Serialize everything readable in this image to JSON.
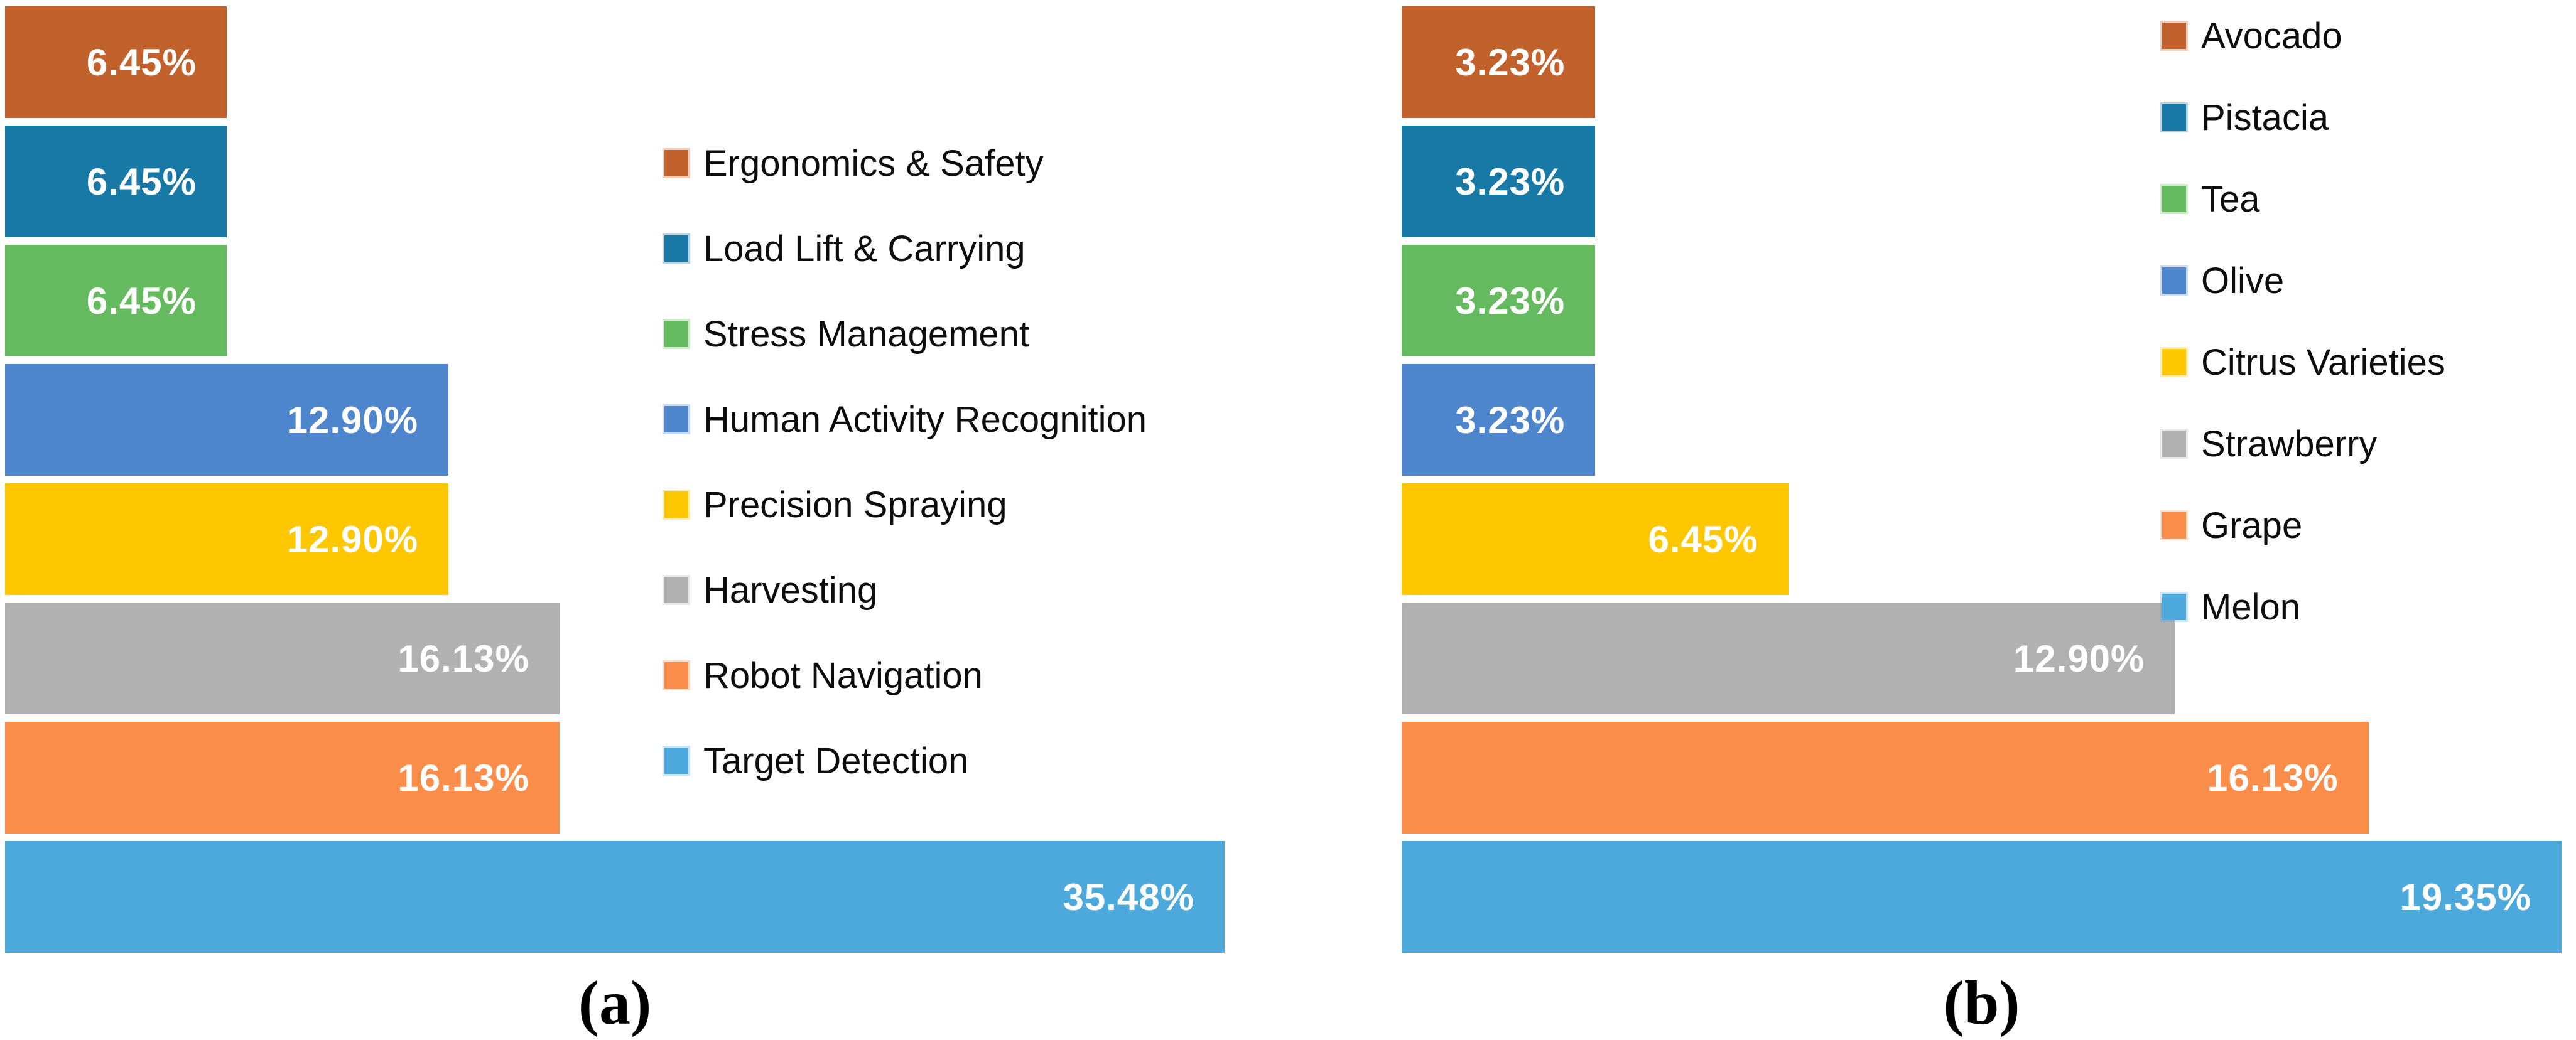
{
  "background_color": "#FFFFFF",
  "chart_data": [
    {
      "id": "a",
      "type": "bar",
      "orientation": "horizontal",
      "caption": "(a)",
      "title": "",
      "xlabel": "",
      "ylabel": "",
      "xlim": [
        0,
        35.48
      ],
      "grid": false,
      "legend_position": "right-overlay",
      "categories": [
        "Ergonomics & Safety",
        "Load Lift & Carrying",
        "Stress Management",
        "Human Activity Recognition",
        "Precision Spraying",
        "Harvesting",
        "Robot Navigation",
        "Target Detection"
      ],
      "values": [
        6.45,
        6.45,
        6.45,
        12.9,
        12.9,
        16.13,
        16.13,
        35.48
      ],
      "labels": [
        "6.45%",
        "6.45%",
        "6.45%",
        "12.90%",
        "12.90%",
        "16.13%",
        "16.13%",
        "35.48%"
      ],
      "colors": [
        "#C1612B",
        "#1878A6",
        "#65B95E",
        "#4E86CE",
        "#FFC702",
        "#B1B1B1",
        "#FB8D4B",
        "#4DA9DC"
      ],
      "value_label_color": "#FFFFFF",
      "legend_text_color": "#0D0D0D"
    },
    {
      "id": "b",
      "type": "bar",
      "orientation": "horizontal",
      "caption": "(b)",
      "title": "",
      "xlabel": "",
      "ylabel": "",
      "xlim": [
        0,
        19.35
      ],
      "grid": false,
      "legend_position": "right-overlay",
      "categories": [
        "Avocado",
        "Pistacia",
        "Tea",
        "Olive",
        "Citrus Varieties",
        "Strawberry",
        "Grape",
        "Melon"
      ],
      "values": [
        3.23,
        3.23,
        3.23,
        3.23,
        6.45,
        12.9,
        16.13,
        19.35
      ],
      "labels": [
        "3.23%",
        "3.23%",
        "3.23%",
        "3.23%",
        "6.45%",
        "12.90%",
        "16.13%",
        "19.35%"
      ],
      "colors": [
        "#C1612B",
        "#1878A6",
        "#65B95E",
        "#4E86CE",
        "#FFC702",
        "#B1B1B1",
        "#FB8D4B",
        "#4DA9DC"
      ],
      "value_label_color": "#FFFFFF",
      "legend_text_color": "#0D0D0D"
    }
  ]
}
